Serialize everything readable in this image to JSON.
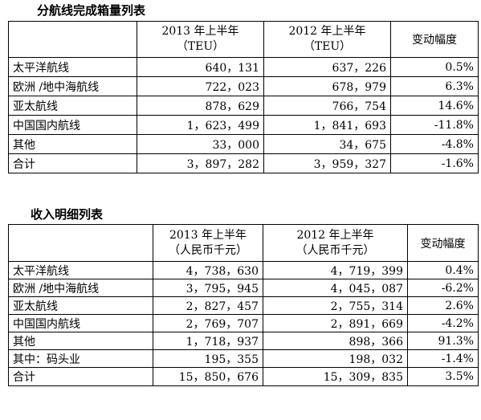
{
  "volume_table": {
    "title": "分航线完成箱量列表",
    "headers": {
      "col1_line1": "2013 年上半年",
      "col1_line2": "（TEU）",
      "col2_line1": "2012 年上半年",
      "col2_line2": "（TEU）",
      "col3": "变动幅度"
    },
    "rows": [
      {
        "route": "太平洋航线",
        "h1_2013": "640，131",
        "h1_2012": "637，226",
        "change": "0.5%"
      },
      {
        "route": "欧洲 /地中海航线",
        "h1_2013": "722，023",
        "h1_2012": "678，979",
        "change": "6.3%"
      },
      {
        "route": "亚太航线",
        "h1_2013": "878，629",
        "h1_2012": "766，754",
        "change": "14.6%"
      },
      {
        "route": "中国国内航线",
        "h1_2013": "1，623，499",
        "h1_2012": "1，841，693",
        "change": "-11.8%"
      },
      {
        "route": "其他",
        "h1_2013": "33，000",
        "h1_2012": "34，675",
        "change": "-4.8%"
      },
      {
        "route": "合计",
        "h1_2013": "3，897，282",
        "h1_2012": "3，959，327",
        "change": "-1.6%"
      }
    ]
  },
  "revenue_table": {
    "title": "收入明细列表",
    "headers": {
      "col1_line1": "2013 年上半年",
      "col1_line2": "（人民币千元）",
      "col2_line1": "2012 年上半年",
      "col2_line2": "（人民币千元）",
      "col3": "变动幅度"
    },
    "rows": [
      {
        "route": "太平洋航线",
        "h1_2013": "4，738，630",
        "h1_2012": "4，719，399",
        "change": "0.4%"
      },
      {
        "route": "欧洲 /地中海航线",
        "h1_2013": "3，795，945",
        "h1_2012": "4，045，087",
        "change": "-6.2%"
      },
      {
        "route": "亚太航线",
        "h1_2013": "2，827，457",
        "h1_2012": "2，755，314",
        "change": "2.6%"
      },
      {
        "route": "中国国内航线",
        "h1_2013": "2，769，707",
        "h1_2012": "2，891，669",
        "change": "-4.2%"
      },
      {
        "route": "其他",
        "h1_2013": "1，718，937",
        "h1_2012": "898，366",
        "change": "91.3%"
      },
      {
        "route": "其中：码头业",
        "h1_2013": "195，355",
        "h1_2012": "198，032",
        "change": "-1.4%"
      },
      {
        "route": "合计",
        "h1_2013": "15，850，676",
        "h1_2012": "15，309，835",
        "change": "3.5%"
      }
    ]
  }
}
